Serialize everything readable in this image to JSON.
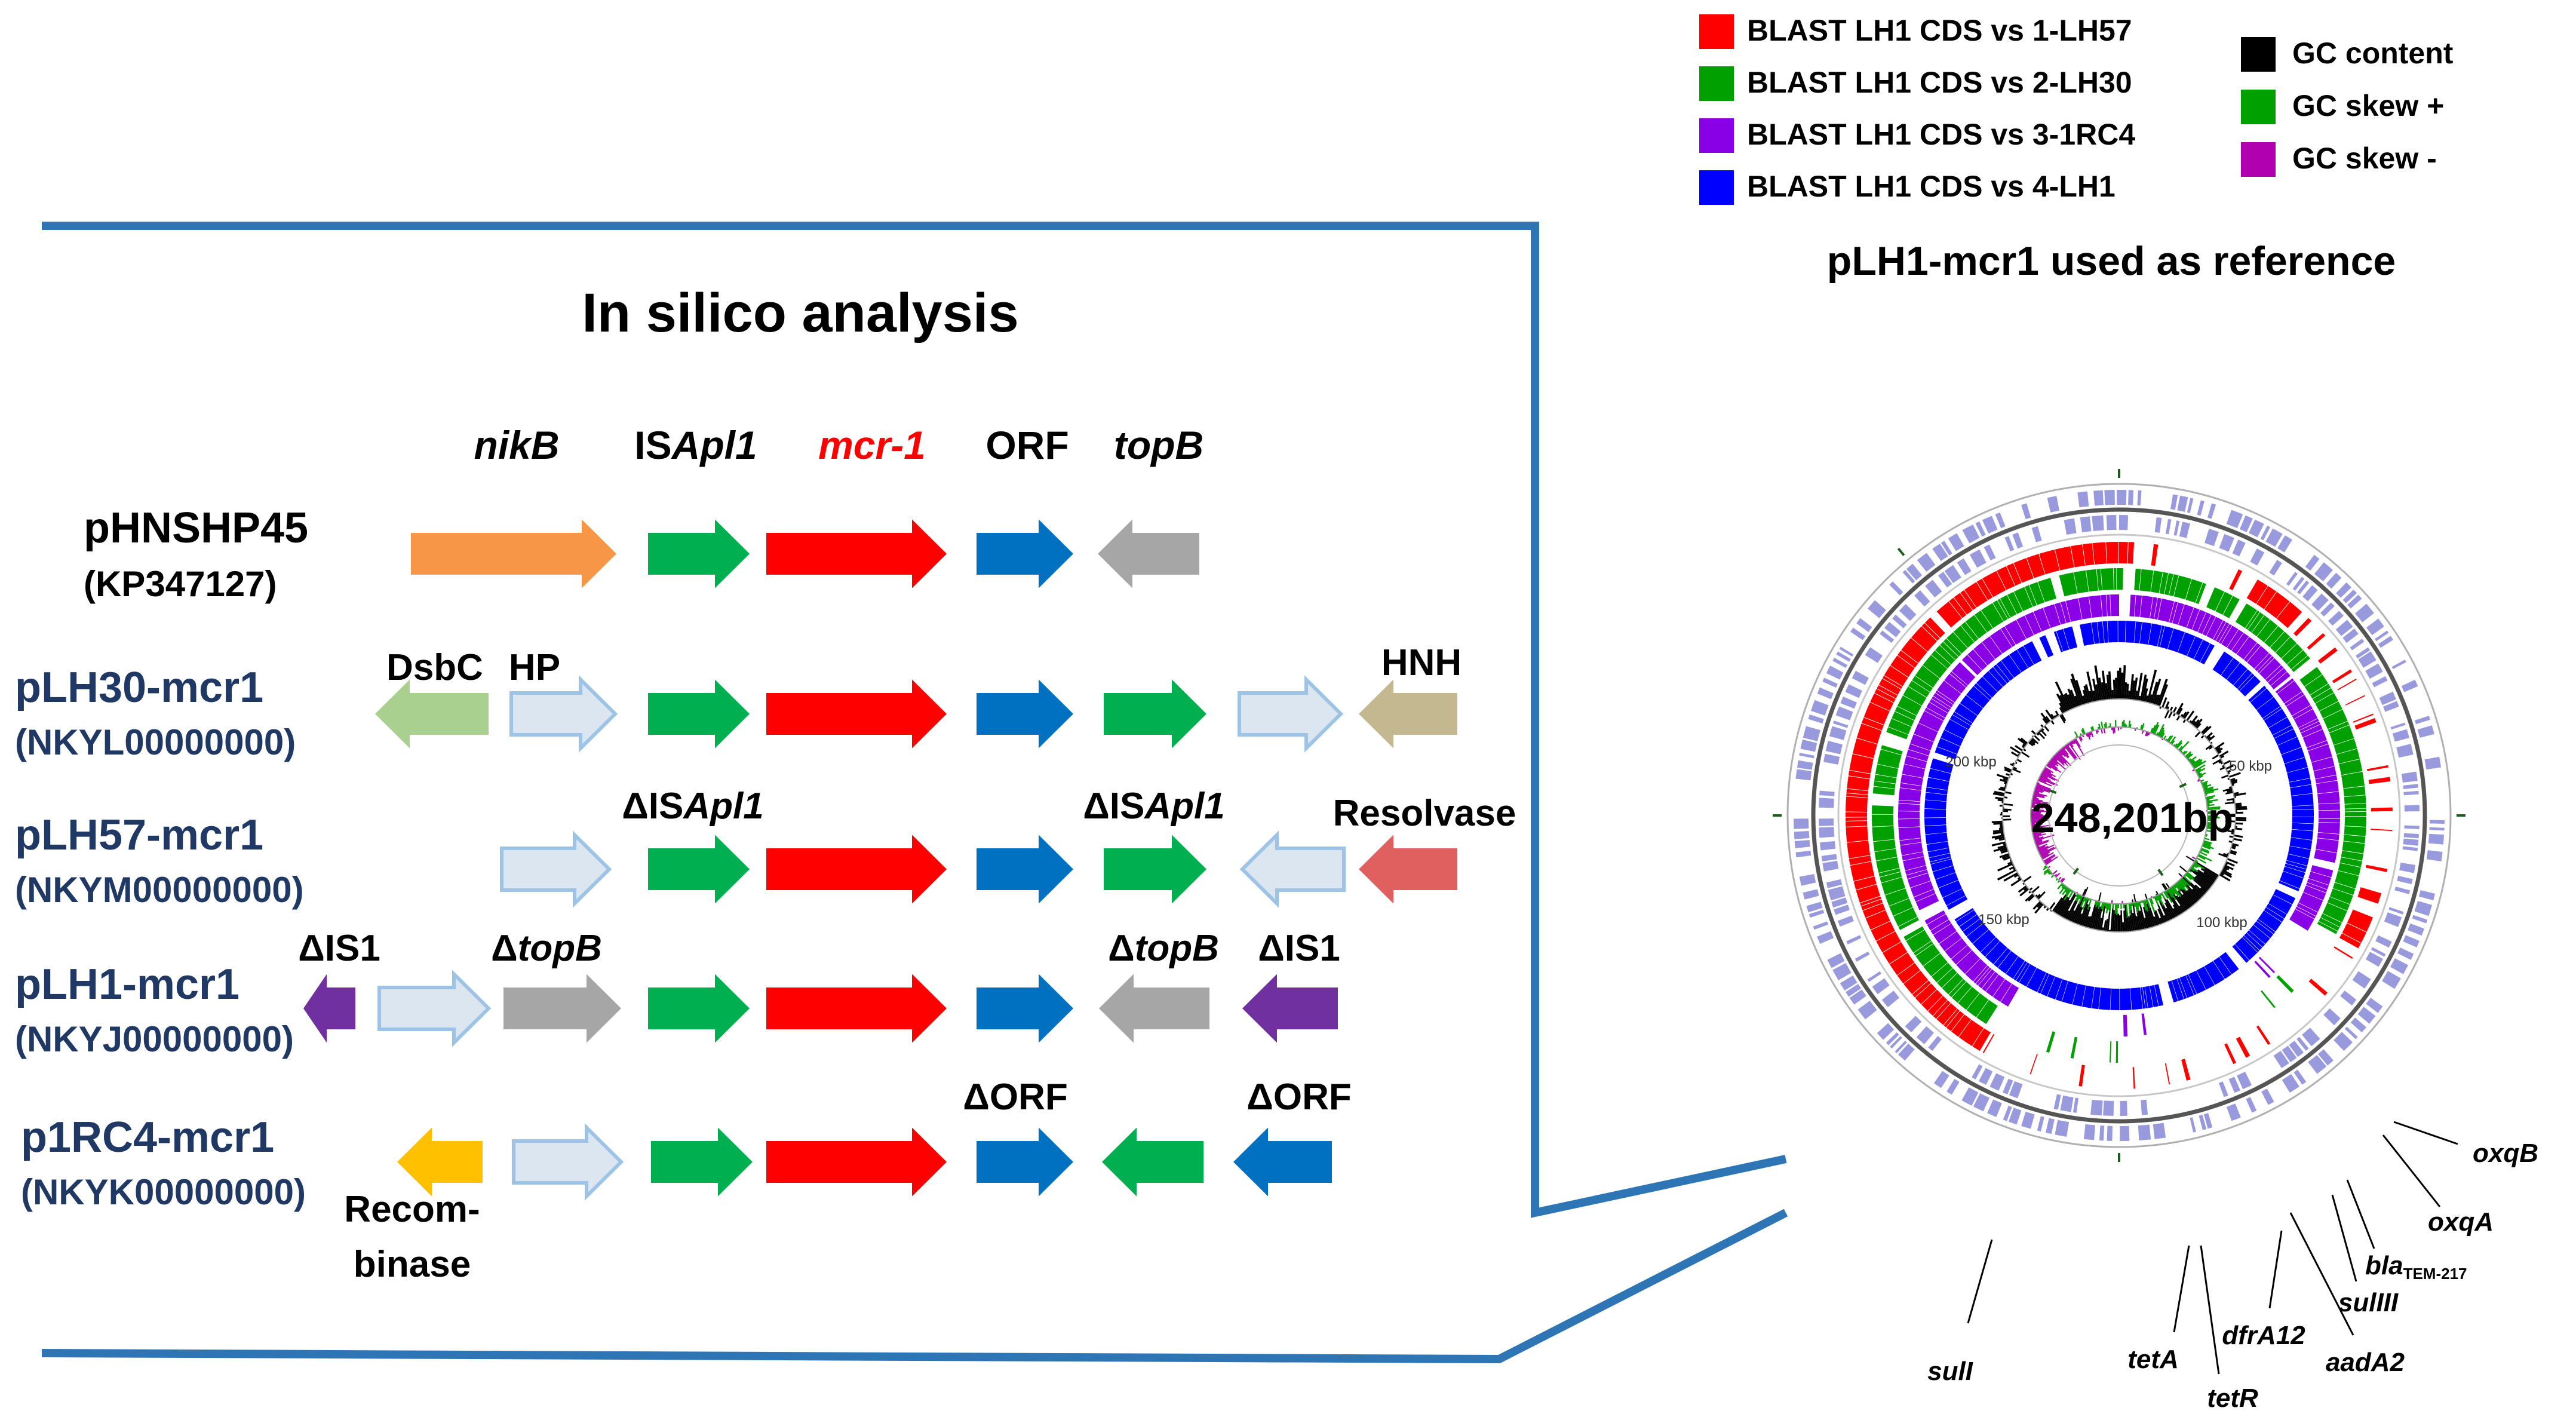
{
  "left_panel": {
    "title": "In silico analysis",
    "column_headers": {
      "nikb": "nikB",
      "isapl1_prefix": "IS",
      "isapl1_italic": "Apl1",
      "mcr1": "mcr-1",
      "orf": "ORF",
      "topb": "topB"
    },
    "plasmids": [
      {
        "name": "pHNSHP45",
        "accession": "(KP347127)"
      },
      {
        "name": "pLH30-mcr1",
        "accession": "(NKYL00000000)"
      },
      {
        "name": "pLH57-mcr1",
        "accession": "(NKYM00000000)"
      },
      {
        "name": "pLH1-mcr1",
        "accession": "(NKYJ00000000)"
      },
      {
        "name": "p1RC4-mcr1",
        "accession": "(NKYK00000000)"
      }
    ],
    "gene_labels": {
      "dsbc": "DsbC",
      "hp": "HP",
      "hnh": "HNH",
      "delta": "Δ",
      "is_prefix": "IS",
      "apl1": "Apl1",
      "resolvase": "Resolvase",
      "is1": "IS1",
      "topb": "topB",
      "orf": "ORF",
      "recombinase_line1": "Recom-",
      "recombinase_line2": "binase"
    }
  },
  "right_panel": {
    "legend_blast": [
      {
        "label": "BLAST LH1 CDS vs  1-LH57",
        "color": "#ff0000"
      },
      {
        "label": "BLAST LH1 CDS vs  2-LH30",
        "color": "#00a000"
      },
      {
        "label": "BLAST LH1 CDS vs  3-1RC4",
        "color": "#8a00e6"
      },
      {
        "label": "BLAST LH1 CDS vs  4-LH1",
        "color": "#0000ff"
      }
    ],
    "legend_gc": [
      {
        "label": "GC content",
        "color": "#000000"
      },
      {
        "label": "GC skew +",
        "color": "#00a000"
      },
      {
        "label": "GC skew -",
        "color": "#b000b0"
      }
    ],
    "title": "pLH1-mcr1 used as reference",
    "center_label": "248,201bp",
    "scale_ticks": [
      "50 kbp",
      "100 kbp",
      "150 kbp",
      "200 kbp"
    ],
    "gene_annotations": {
      "oxqb": "oxqB",
      "oxqa": "oxqA",
      "bla": "bla",
      "bla_sub": "TEM-217",
      "sul3": "sulIII",
      "aada2": "aadA2",
      "dfra12": "dfrA12",
      "tetr": "tetR",
      "teta": "tetA",
      "sul1": "sulI"
    }
  },
  "colors": {
    "frame_blue": "#2e75b6",
    "label_navy": "#1f3864",
    "orange": "#f79646",
    "green": "#00b050",
    "red": "#ff0000",
    "blue": "#0070c0",
    "grey": "#a6a6a6",
    "light_green": "#a9d08e",
    "light_blue_fill": "#dce6f1",
    "light_blue_edge": "#9dc3e6",
    "khaki": "#c4b890",
    "salmon": "#e06060",
    "purple": "#7030a0",
    "yellow": "#ffc000",
    "cds_lavender": "#9999dd"
  }
}
